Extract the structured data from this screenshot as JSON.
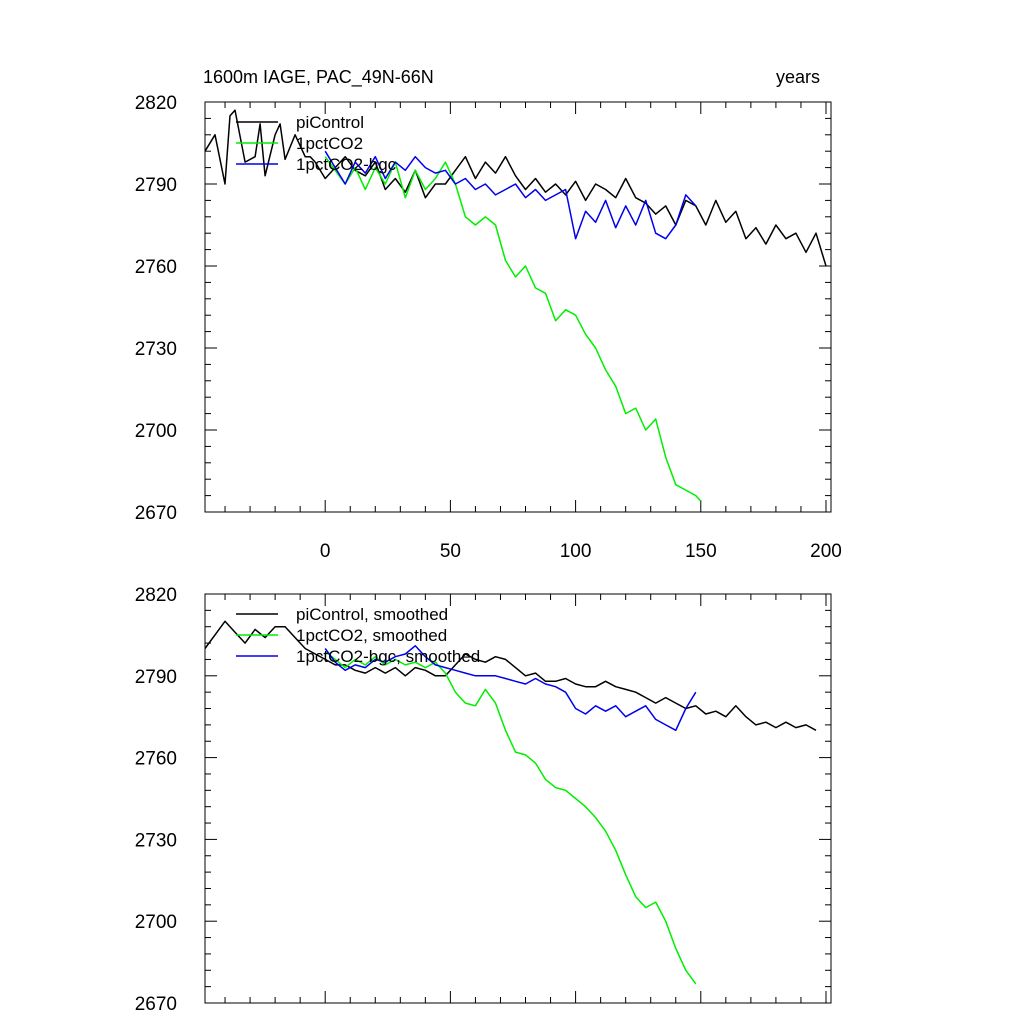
{
  "chart_data": [
    {
      "type": "line",
      "title": "1600m IAGE, PAC_49N-66N",
      "title_right": "years",
      "xlim": [
        -48,
        202
      ],
      "ylim": [
        2670,
        2820
      ],
      "xticks": [
        0,
        50,
        100,
        150,
        200
      ],
      "xtick_labels": [
        "0",
        "50",
        "100",
        "150",
        "200"
      ],
      "yticks": [
        2670,
        2700,
        2730,
        2760,
        2790,
        2820
      ],
      "ytick_labels": [
        "2670",
        "2700",
        "2730",
        "2760",
        "2790",
        "2820"
      ],
      "legend_position": "top-left",
      "series": [
        {
          "name": "piControl",
          "color": "#000000",
          "x": [
            -48,
            -44,
            -40,
            -38,
            -36,
            -32,
            -28,
            -26,
            -24,
            -20,
            -18,
            -16,
            -12,
            -8,
            -6,
            -4,
            0,
            4,
            8,
            12,
            16,
            20,
            24,
            28,
            32,
            36,
            40,
            44,
            48,
            52,
            56,
            60,
            64,
            68,
            72,
            76,
            80,
            84,
            88,
            92,
            96,
            100,
            104,
            108,
            112,
            116,
            120,
            124,
            128,
            132,
            136,
            140,
            144,
            148,
            152,
            156,
            160,
            164,
            168,
            172,
            176,
            180,
            184,
            188,
            192,
            196,
            200
          ],
          "y": [
            2802,
            2808,
            2790,
            2815,
            2817,
            2798,
            2800,
            2812,
            2793,
            2808,
            2812,
            2799,
            2808,
            2800,
            2800,
            2798,
            2792,
            2796,
            2800,
            2795,
            2793,
            2798,
            2788,
            2792,
            2787,
            2795,
            2785,
            2790,
            2790,
            2795,
            2800,
            2792,
            2798,
            2794,
            2800,
            2793,
            2788,
            2792,
            2787,
            2790,
            2786,
            2791,
            2784,
            2790,
            2788,
            2785,
            2792,
            2785,
            2783,
            2779,
            2782,
            2775,
            2784,
            2782,
            2775,
            2784,
            2776,
            2780,
            2770,
            2774,
            2768,
            2775,
            2770,
            2772,
            2765,
            2772,
            2760
          ]
        },
        {
          "name": "1pctCO2",
          "color": "#00ee00",
          "x": [
            0,
            4,
            8,
            12,
            16,
            20,
            24,
            28,
            32,
            36,
            40,
            44,
            48,
            52,
            56,
            60,
            64,
            68,
            72,
            76,
            80,
            84,
            88,
            92,
            96,
            100,
            104,
            108,
            112,
            116,
            120,
            124,
            128,
            132,
            136,
            140,
            144,
            148,
            150
          ],
          "y": [
            2800,
            2795,
            2790,
            2796,
            2788,
            2796,
            2790,
            2798,
            2785,
            2795,
            2788,
            2792,
            2798,
            2790,
            2778,
            2775,
            2778,
            2775,
            2762,
            2756,
            2760,
            2752,
            2750,
            2740,
            2744,
            2742,
            2735,
            2730,
            2722,
            2716,
            2706,
            2708,
            2700,
            2704,
            2690,
            2680,
            2678,
            2676,
            2674
          ]
        },
        {
          "name": "1pctCO2-bgc",
          "color": "#0000ee",
          "x": [
            0,
            4,
            8,
            12,
            16,
            20,
            24,
            28,
            32,
            36,
            40,
            44,
            48,
            52,
            56,
            60,
            64,
            68,
            72,
            76,
            80,
            84,
            88,
            92,
            96,
            100,
            104,
            108,
            112,
            116,
            120,
            124,
            128,
            132,
            136,
            140,
            144,
            148
          ],
          "y": [
            2802,
            2796,
            2790,
            2798,
            2794,
            2800,
            2792,
            2798,
            2795,
            2800,
            2796,
            2794,
            2795,
            2790,
            2792,
            2788,
            2790,
            2786,
            2788,
            2790,
            2785,
            2788,
            2784,
            2786,
            2788,
            2770,
            2780,
            2776,
            2784,
            2774,
            2782,
            2775,
            2784,
            2772,
            2770,
            2775,
            2786,
            2782
          ]
        }
      ]
    },
    {
      "type": "line",
      "title": "",
      "xlim": [
        -48,
        202
      ],
      "ylim": [
        2670,
        2820
      ],
      "xticks": [
        0,
        50,
        100,
        150,
        200
      ],
      "xtick_labels": [],
      "yticks": [
        2670,
        2700,
        2730,
        2760,
        2790,
        2820
      ],
      "ytick_labels": [
        "2670",
        "2700",
        "2730",
        "2760",
        "2790",
        "2820"
      ],
      "legend_position": "top-left",
      "series": [
        {
          "name": "piControl, smoothed",
          "color": "#000000",
          "x": [
            -48,
            -44,
            -40,
            -36,
            -32,
            -28,
            -24,
            -20,
            -16,
            -12,
            -8,
            -4,
            0,
            4,
            8,
            12,
            16,
            20,
            24,
            28,
            32,
            36,
            40,
            44,
            48,
            52,
            56,
            60,
            64,
            68,
            72,
            76,
            80,
            84,
            88,
            92,
            96,
            100,
            104,
            108,
            112,
            116,
            120,
            124,
            128,
            132,
            136,
            140,
            144,
            148,
            152,
            156,
            160,
            164,
            168,
            172,
            176,
            180,
            184,
            188,
            192,
            196
          ],
          "y": [
            2800,
            2805,
            2810,
            2806,
            2802,
            2807,
            2804,
            2808,
            2808,
            2804,
            2800,
            2798,
            2796,
            2794,
            2794,
            2792,
            2791,
            2793,
            2791,
            2793,
            2790,
            2793,
            2792,
            2790,
            2790,
            2794,
            2798,
            2796,
            2795,
            2797,
            2796,
            2793,
            2790,
            2791,
            2788,
            2788,
            2789,
            2787,
            2786,
            2786,
            2788,
            2786,
            2785,
            2784,
            2782,
            2780,
            2782,
            2780,
            2778,
            2779,
            2776,
            2777,
            2775,
            2779,
            2775,
            2772,
            2773,
            2771,
            2773,
            2771,
            2772,
            2770
          ]
        },
        {
          "name": "1pctCO2, smoothed",
          "color": "#00ee00",
          "x": [
            0,
            4,
            8,
            12,
            16,
            20,
            24,
            28,
            32,
            36,
            40,
            44,
            48,
            52,
            56,
            60,
            64,
            68,
            72,
            76,
            80,
            84,
            88,
            92,
            96,
            100,
            104,
            108,
            112,
            116,
            120,
            124,
            128,
            132,
            136,
            140,
            144,
            148
          ],
          "y": [
            2799,
            2796,
            2793,
            2796,
            2794,
            2797,
            2794,
            2796,
            2794,
            2795,
            2793,
            2795,
            2791,
            2784,
            2780,
            2779,
            2785,
            2780,
            2770,
            2762,
            2761,
            2758,
            2752,
            2749,
            2748,
            2745,
            2742,
            2738,
            2733,
            2726,
            2717,
            2709,
            2705,
            2707,
            2700,
            2690,
            2682,
            2677
          ]
        },
        {
          "name": "1pctCO2-bgc, smoothed",
          "color": "#0000ee",
          "x": [
            0,
            4,
            8,
            12,
            16,
            20,
            24,
            28,
            32,
            36,
            40,
            44,
            48,
            52,
            56,
            60,
            64,
            68,
            72,
            76,
            80,
            84,
            88,
            92,
            96,
            100,
            104,
            108,
            112,
            116,
            120,
            124,
            128,
            132,
            136,
            140,
            144,
            148
          ],
          "y": [
            2800,
            2795,
            2792,
            2794,
            2793,
            2796,
            2795,
            2797,
            2798,
            2801,
            2797,
            2794,
            2793,
            2792,
            2791,
            2790,
            2790,
            2790,
            2789,
            2788,
            2787,
            2789,
            2787,
            2786,
            2784,
            2778,
            2776,
            2779,
            2777,
            2779,
            2775,
            2777,
            2779,
            2774,
            2772,
            2770,
            2778,
            2784
          ]
        }
      ]
    }
  ]
}
